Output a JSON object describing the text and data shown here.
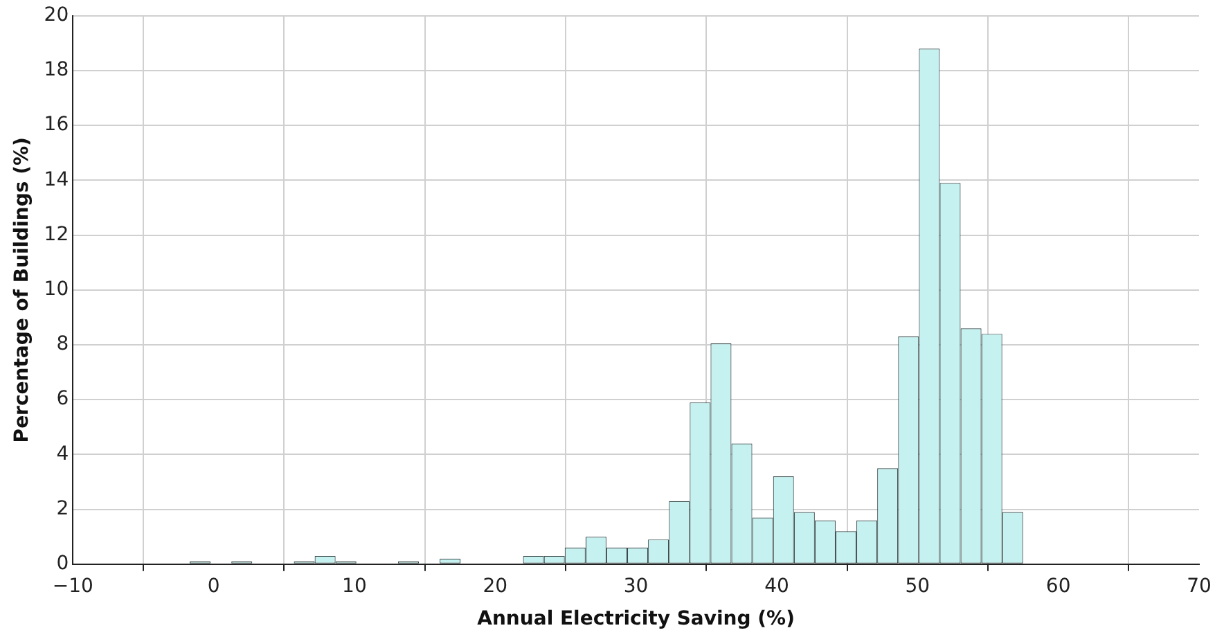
{
  "chart_data": {
    "type": "histogram",
    "xlabel": "Annual Electricity Saving (%)",
    "ylabel": "Percentage of Buildings (%)",
    "bins": [
      -1.7,
      -0.22,
      1.26,
      2.74,
      4.22,
      5.7,
      7.18,
      8.66,
      10.14,
      11.62,
      13.1,
      14.58,
      16.06,
      17.54,
      19.02,
      20.5,
      21.98,
      23.46,
      24.94,
      26.42,
      27.9,
      29.38,
      30.86,
      32.34,
      33.82,
      35.3,
      36.78,
      38.26,
      39.74,
      41.22,
      42.7,
      44.18,
      45.66,
      47.14,
      48.62,
      50.1,
      51.58,
      53.06,
      54.54,
      56.02,
      57.5
    ],
    "values": [
      0.1,
      0,
      0.1,
      0,
      0,
      0.1,
      0.3,
      0.1,
      0,
      0,
      0.1,
      0,
      0.2,
      0,
      0,
      0,
      0.3,
      0.3,
      0.6,
      1.0,
      0.6,
      0.6,
      0.9,
      2.3,
      5.9,
      8.05,
      4.4,
      1.7,
      3.2,
      1.9,
      1.6,
      1.2,
      1.6,
      3.5,
      8.3,
      18.8,
      13.9,
      8.6,
      8.4,
      1.9
    ],
    "color": "#c5f1f1",
    "xlim": [
      -10,
      70
    ],
    "xticks": [
      {
        "value": -10,
        "label": "−10"
      },
      0,
      10,
      20,
      30,
      40,
      50,
      60,
      70
    ],
    "ylim": [
      0,
      20
    ],
    "yticks": [
      0,
      2,
      4,
      6,
      8,
      10,
      12,
      14,
      16,
      18,
      20
    ],
    "grid": true
  }
}
